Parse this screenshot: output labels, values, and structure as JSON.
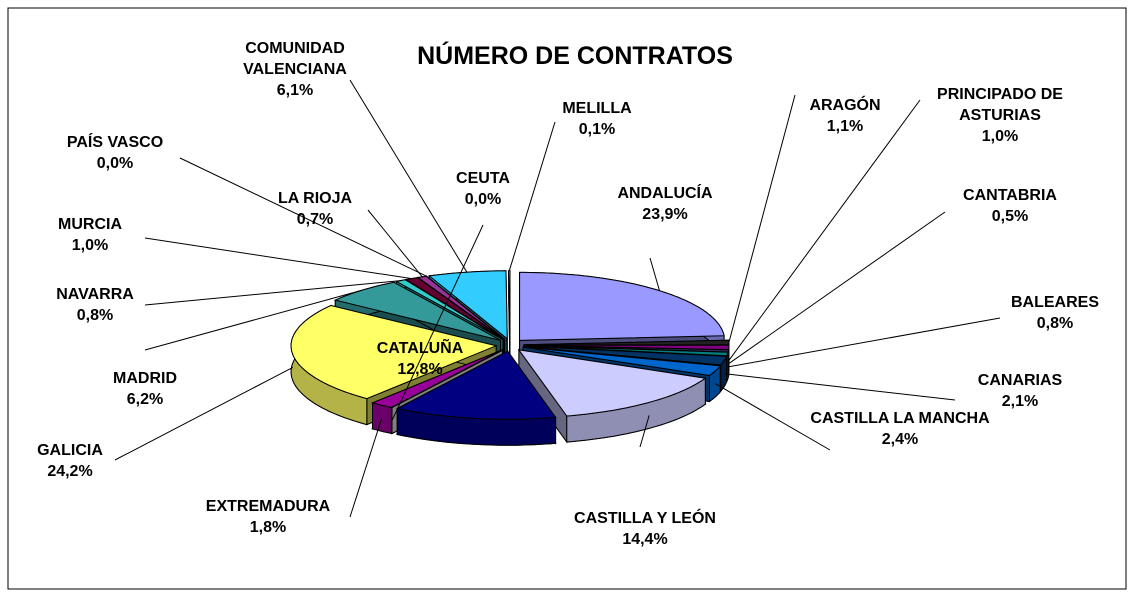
{
  "chart_data": {
    "type": "pie3d",
    "title": "NÚMERO DE CONTRATOS",
    "categories": [
      "ANDALUCÍA",
      "ARAGÓN",
      "PRINCIPADO DE ASTURIAS",
      "CANTABRIA",
      "BALEARES",
      "CANARIAS",
      "CASTILLA LA MANCHA",
      "CASTILLA Y LEÓN",
      "CATALUÑA",
      "CEUTA",
      "EXTREMADURA",
      "GALICIA",
      "MADRID",
      "NAVARRA",
      "MURCIA",
      "LA RIOJA",
      "PAÍS VASCO",
      "COMUNIDAD VALENCIANA",
      "MELILLA"
    ],
    "values": [
      23.9,
      1.1,
      1.0,
      0.5,
      0.8,
      2.1,
      2.4,
      14.4,
      12.8,
      0.0,
      1.8,
      24.2,
      6.2,
      0.8,
      1.0,
      0.7,
      0.0,
      6.1,
      0.1
    ],
    "value_labels": [
      "23,9%",
      "1,1%",
      "1,0%",
      "0,5%",
      "0,8%",
      "2,1%",
      "2,4%",
      "14,4%",
      "12,8%",
      "0,0%",
      "1,8%",
      "24,2%",
      "6,2%",
      "0,8%",
      "1,0%",
      "0,7%",
      "0,0%",
      "6,1%",
      "0,1%"
    ],
    "colors": [
      "#9999ff",
      "#222222",
      "#800080",
      "#333366",
      "#008080",
      "#003366",
      "#0066cc",
      "#ccccff",
      "#000080",
      "#ffffff",
      "#990099",
      "#ffff66",
      "#339999",
      "#33cccc",
      "#660033",
      "#993399",
      "#cccccc",
      "#33ccff",
      "#ffffff"
    ]
  }
}
